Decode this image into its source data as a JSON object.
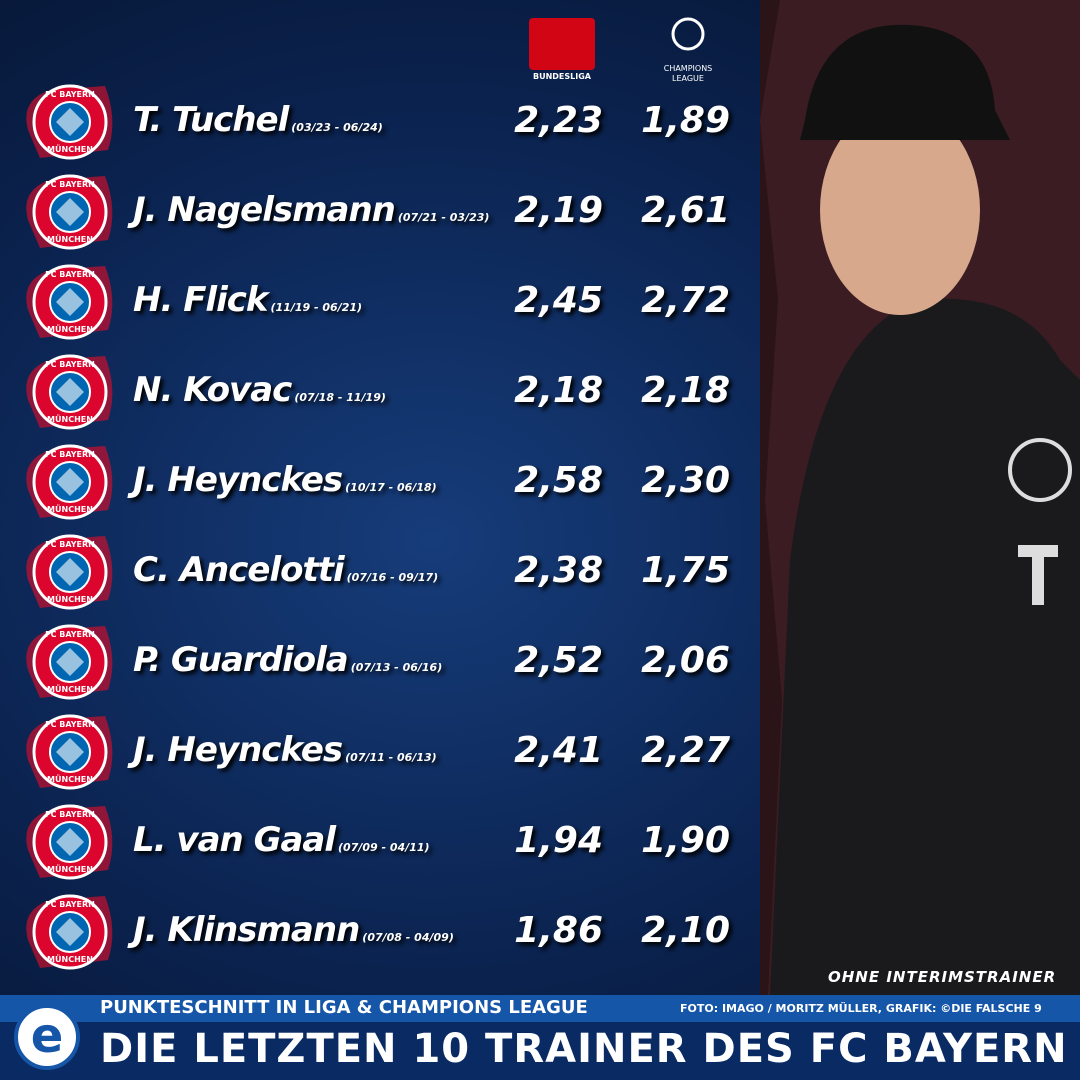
{
  "header": {
    "bundesliga": "BUNDESLIGA",
    "champions_league": [
      "CHAMPIONS",
      "LEAGUE"
    ]
  },
  "logo": {
    "top": "FC BAYERN",
    "bottom": "MÜNCHEN"
  },
  "table": {
    "rows": [
      {
        "name": "T. Tuchel",
        "period": "(03/23 - 06/24)",
        "bundesliga": "2,23",
        "champions_league": "1,89"
      },
      {
        "name": "J. Nagelsmann",
        "period": "(07/21 - 03/23)",
        "bundesliga": "2,19",
        "champions_league": "2,61"
      },
      {
        "name": "H. Flick",
        "period": "(11/19 - 06/21)",
        "bundesliga": "2,45",
        "champions_league": "2,72"
      },
      {
        "name": "N. Kovac",
        "period": "(07/18 - 11/19)",
        "bundesliga": "2,18",
        "champions_league": "2,18"
      },
      {
        "name": "J. Heynckes",
        "period": "(10/17 - 06/18)",
        "bundesliga": "2,58",
        "champions_league": "2,30"
      },
      {
        "name": "C. Ancelotti",
        "period": "(07/16 - 09/17)",
        "bundesliga": "2,38",
        "champions_league": "1,75"
      },
      {
        "name": "P. Guardiola",
        "period": "(07/13 - 06/16)",
        "bundesliga": "2,52",
        "champions_league": "2,06"
      },
      {
        "name": "J. Heynckes",
        "period": "(07/11 - 06/13)",
        "bundesliga": "2,41",
        "champions_league": "2,27"
      },
      {
        "name": "L. van Gaal",
        "period": "(07/09 - 04/11)",
        "bundesliga": "1,94",
        "champions_league": "1,90"
      },
      {
        "name": "J. Klinsmann",
        "period": "(07/08 - 04/09)",
        "bundesliga": "1,86",
        "champions_league": "2,10"
      }
    ]
  },
  "footer": {
    "note": "OHNE INTERIMSTRAINER",
    "subtitle": "PUNKTESCHNITT IN LIGA & CHAMPIONS LEAGUE",
    "credit": "FOTO: IMAGO / MORITZ MÜLLER, GRAFIK: ©DIE FALSCHE 9",
    "title": "DIE LETZTEN 10 TRAINER DES FC BAYERN",
    "brand": "e"
  }
}
